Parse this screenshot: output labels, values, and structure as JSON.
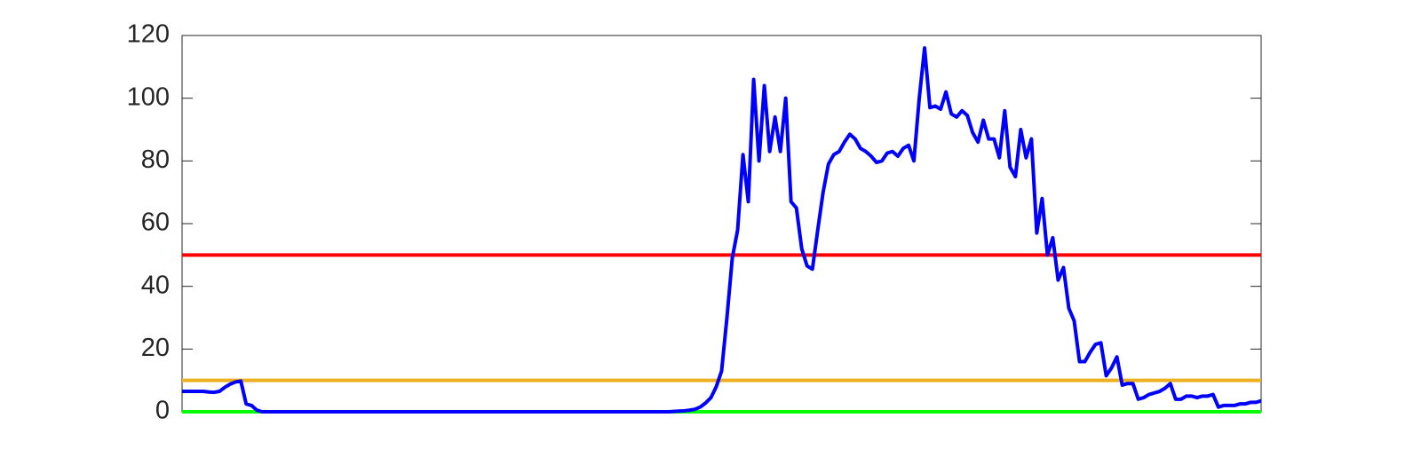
{
  "chart_data": {
    "type": "line",
    "series": [
      {
        "color": "#0000ff",
        "values": [
          6.5,
          6.5,
          6.5,
          6.5,
          6.5,
          6.3,
          6.2,
          6.5,
          7.8,
          8.8,
          9.5,
          9.8,
          2.5,
          2,
          0.5,
          0,
          0,
          0,
          0,
          0,
          0,
          0,
          0,
          0,
          0,
          0,
          0,
          0,
          0,
          0,
          0,
          0,
          0,
          0,
          0,
          0,
          0,
          0,
          0,
          0,
          0,
          0,
          0,
          0,
          0,
          0,
          0,
          0,
          0,
          0,
          0,
          0,
          0,
          0,
          0,
          0,
          0,
          0,
          0,
          0,
          0,
          0,
          0,
          0,
          0,
          0,
          0,
          0,
          0,
          0,
          0,
          0,
          0,
          0,
          0,
          0,
          0,
          0,
          0,
          0,
          0,
          0,
          0,
          0,
          0,
          0,
          0,
          0,
          0,
          0,
          0,
          0,
          0.1,
          0.2,
          0.3,
          0.5,
          0.8,
          1.5,
          2.8,
          4.5,
          8,
          13,
          30,
          49,
          58,
          82,
          67,
          106,
          80,
          104,
          83,
          94,
          83,
          100,
          67,
          65,
          52,
          46.5,
          45.5,
          58,
          70,
          79,
          82,
          83,
          86,
          88.5,
          87,
          84,
          83,
          81.5,
          79.5,
          80,
          82.5,
          83,
          81.5,
          84,
          85,
          80,
          100,
          116,
          97,
          97.5,
          96.5,
          102,
          95,
          94,
          96,
          94.5,
          89,
          86,
          93,
          87,
          87,
          81,
          96,
          78,
          75,
          90,
          81,
          87,
          57,
          68,
          50,
          55.5,
          42,
          46,
          33,
          29,
          16,
          16,
          19,
          21.5,
          22,
          11.5,
          14,
          17.5,
          8.5,
          9,
          9,
          4,
          4.5,
          5.5,
          6,
          6.5,
          7.5,
          9,
          4,
          4,
          5,
          5,
          4.5,
          5,
          5,
          5.5,
          1.5,
          2,
          2,
          2,
          2.5,
          2.5,
          3,
          3,
          3.5
        ]
      }
    ],
    "hlines": [
      {
        "value": 50,
        "color": "#ff0000"
      },
      {
        "value": 10,
        "color": "#edb120"
      },
      {
        "value": 0,
        "color": "#00ff00"
      }
    ],
    "ylim": [
      0,
      120
    ],
    "yticks": [
      0,
      20,
      40,
      60,
      80,
      100,
      120
    ],
    "grid": false
  }
}
